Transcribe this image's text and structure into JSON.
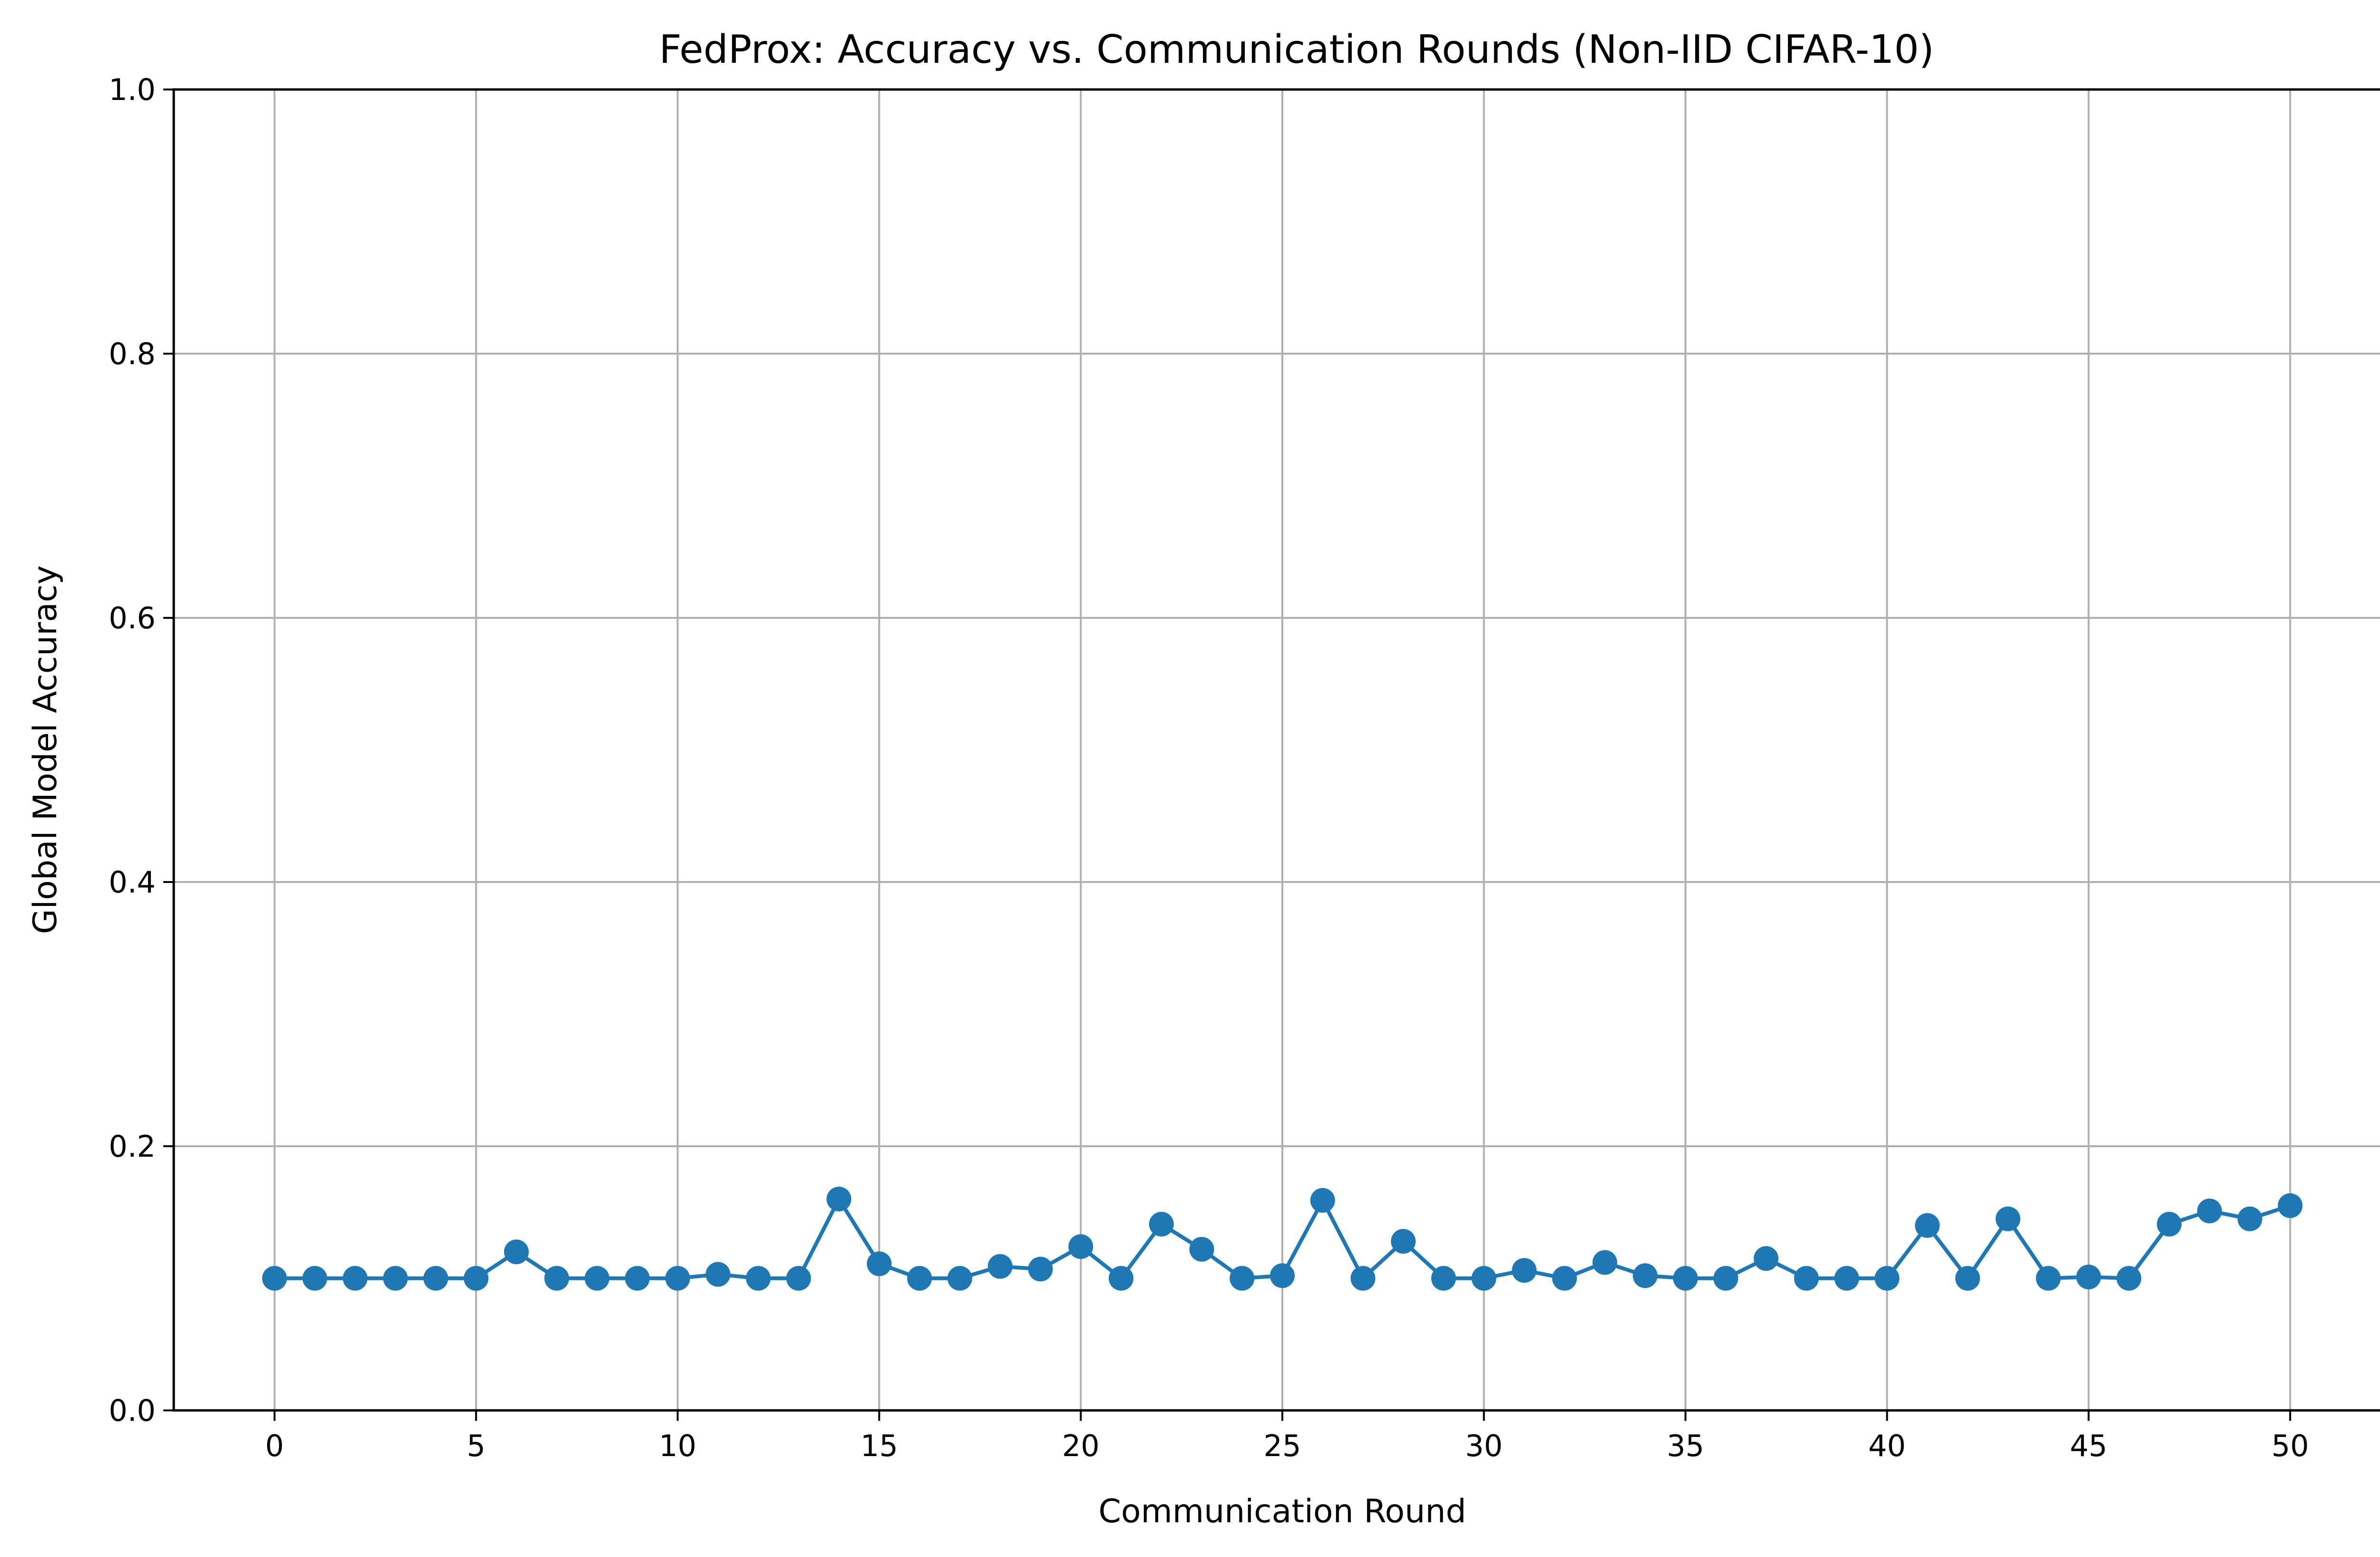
{
  "chart_data": {
    "type": "line",
    "title": "FedProx: Accuracy vs. Communication Rounds (Non-IID CIFAR-10)",
    "xlabel": "Communication Round",
    "ylabel": "Global Model Accuracy",
    "xlim": [
      -2.5,
      52.5
    ],
    "ylim": [
      0.0,
      1.0
    ],
    "xticks": [
      0,
      5,
      10,
      15,
      20,
      25,
      30,
      35,
      40,
      45,
      50
    ],
    "xtick_labels": [
      "0",
      "5",
      "10",
      "15",
      "20",
      "25",
      "30",
      "35",
      "40",
      "45",
      "50"
    ],
    "yticks": [
      0.0,
      0.2,
      0.4,
      0.6,
      0.8,
      1.0
    ],
    "ytick_labels": [
      "0.0",
      "0.2",
      "0.4",
      "0.6",
      "0.8",
      "1.0"
    ],
    "grid": true,
    "series": [
      {
        "color": "#1f77b4",
        "marker": "circle",
        "x": [
          0,
          1,
          2,
          3,
          4,
          5,
          6,
          7,
          8,
          9,
          10,
          11,
          12,
          13,
          14,
          15,
          16,
          17,
          18,
          19,
          20,
          21,
          22,
          23,
          24,
          25,
          26,
          27,
          28,
          29,
          30,
          31,
          32,
          33,
          34,
          35,
          36,
          37,
          38,
          39,
          40,
          41,
          42,
          43,
          44,
          45,
          46,
          47,
          48,
          49,
          50
        ],
        "y": [
          0.1,
          0.1,
          0.1,
          0.1,
          0.1,
          0.1,
          0.12,
          0.1,
          0.1,
          0.1,
          0.1,
          0.103,
          0.1,
          0.1,
          0.16,
          0.111,
          0.1,
          0.1,
          0.109,
          0.107,
          0.124,
          0.1,
          0.141,
          0.122,
          0.1,
          0.102,
          0.159,
          0.1,
          0.128,
          0.1,
          0.1,
          0.106,
          0.1,
          0.112,
          0.102,
          0.1,
          0.1,
          0.115,
          0.1,
          0.1,
          0.1,
          0.14,
          0.1,
          0.145,
          0.1,
          0.101,
          0.1,
          0.141,
          0.151,
          0.145,
          0.155
        ]
      }
    ]
  }
}
